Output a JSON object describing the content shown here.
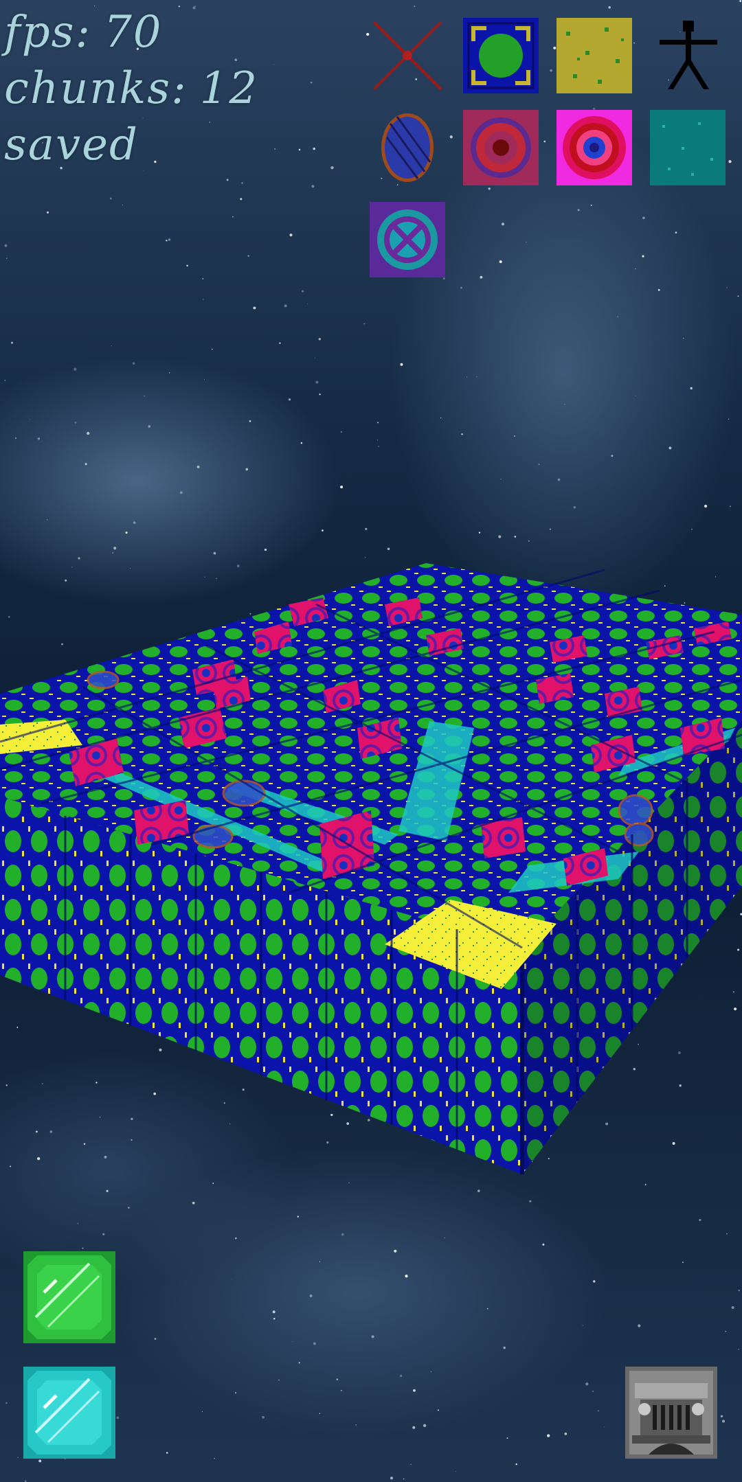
{
  "hud": {
    "fps_label": "fps:",
    "fps_value": "70",
    "chunks_label": "chunks:",
    "chunks_value": "12",
    "status": "saved"
  },
  "palette": {
    "slots": [
      {
        "id": "delete",
        "icon": "x-cross-icon"
      },
      {
        "id": "blue-green-dot-block",
        "icon": "blue-green-dot-block-icon"
      },
      {
        "id": "yellow-speckle-block",
        "icon": "yellow-speckle-block-icon"
      },
      {
        "id": "player-figure",
        "icon": "stick-figure-icon"
      },
      {
        "id": "blue-oval-block",
        "icon": "blue-oval-block-icon"
      },
      {
        "id": "red-target-block",
        "icon": "red-target-block-icon"
      },
      {
        "id": "magenta-target-block",
        "icon": "magenta-target-block-icon"
      },
      {
        "id": "teal-speckle-block",
        "icon": "teal-speckle-block-icon"
      },
      {
        "id": "teal-cross-ring-block",
        "icon": "teal-cross-ring-block-icon"
      }
    ]
  },
  "controls": {
    "green_gem": "green-gem-icon",
    "cyan_gem": "cyan-gem-icon",
    "vehicle": "jeep-icon"
  },
  "colors": {
    "hud_text": "#a9d4dc",
    "block_blue": "#0a14a8",
    "block_green": "#22b02a",
    "block_yellow": "#f6ef3a",
    "block_magenta": "#e0126a",
    "floor_cyan": "#1fd6cc"
  }
}
